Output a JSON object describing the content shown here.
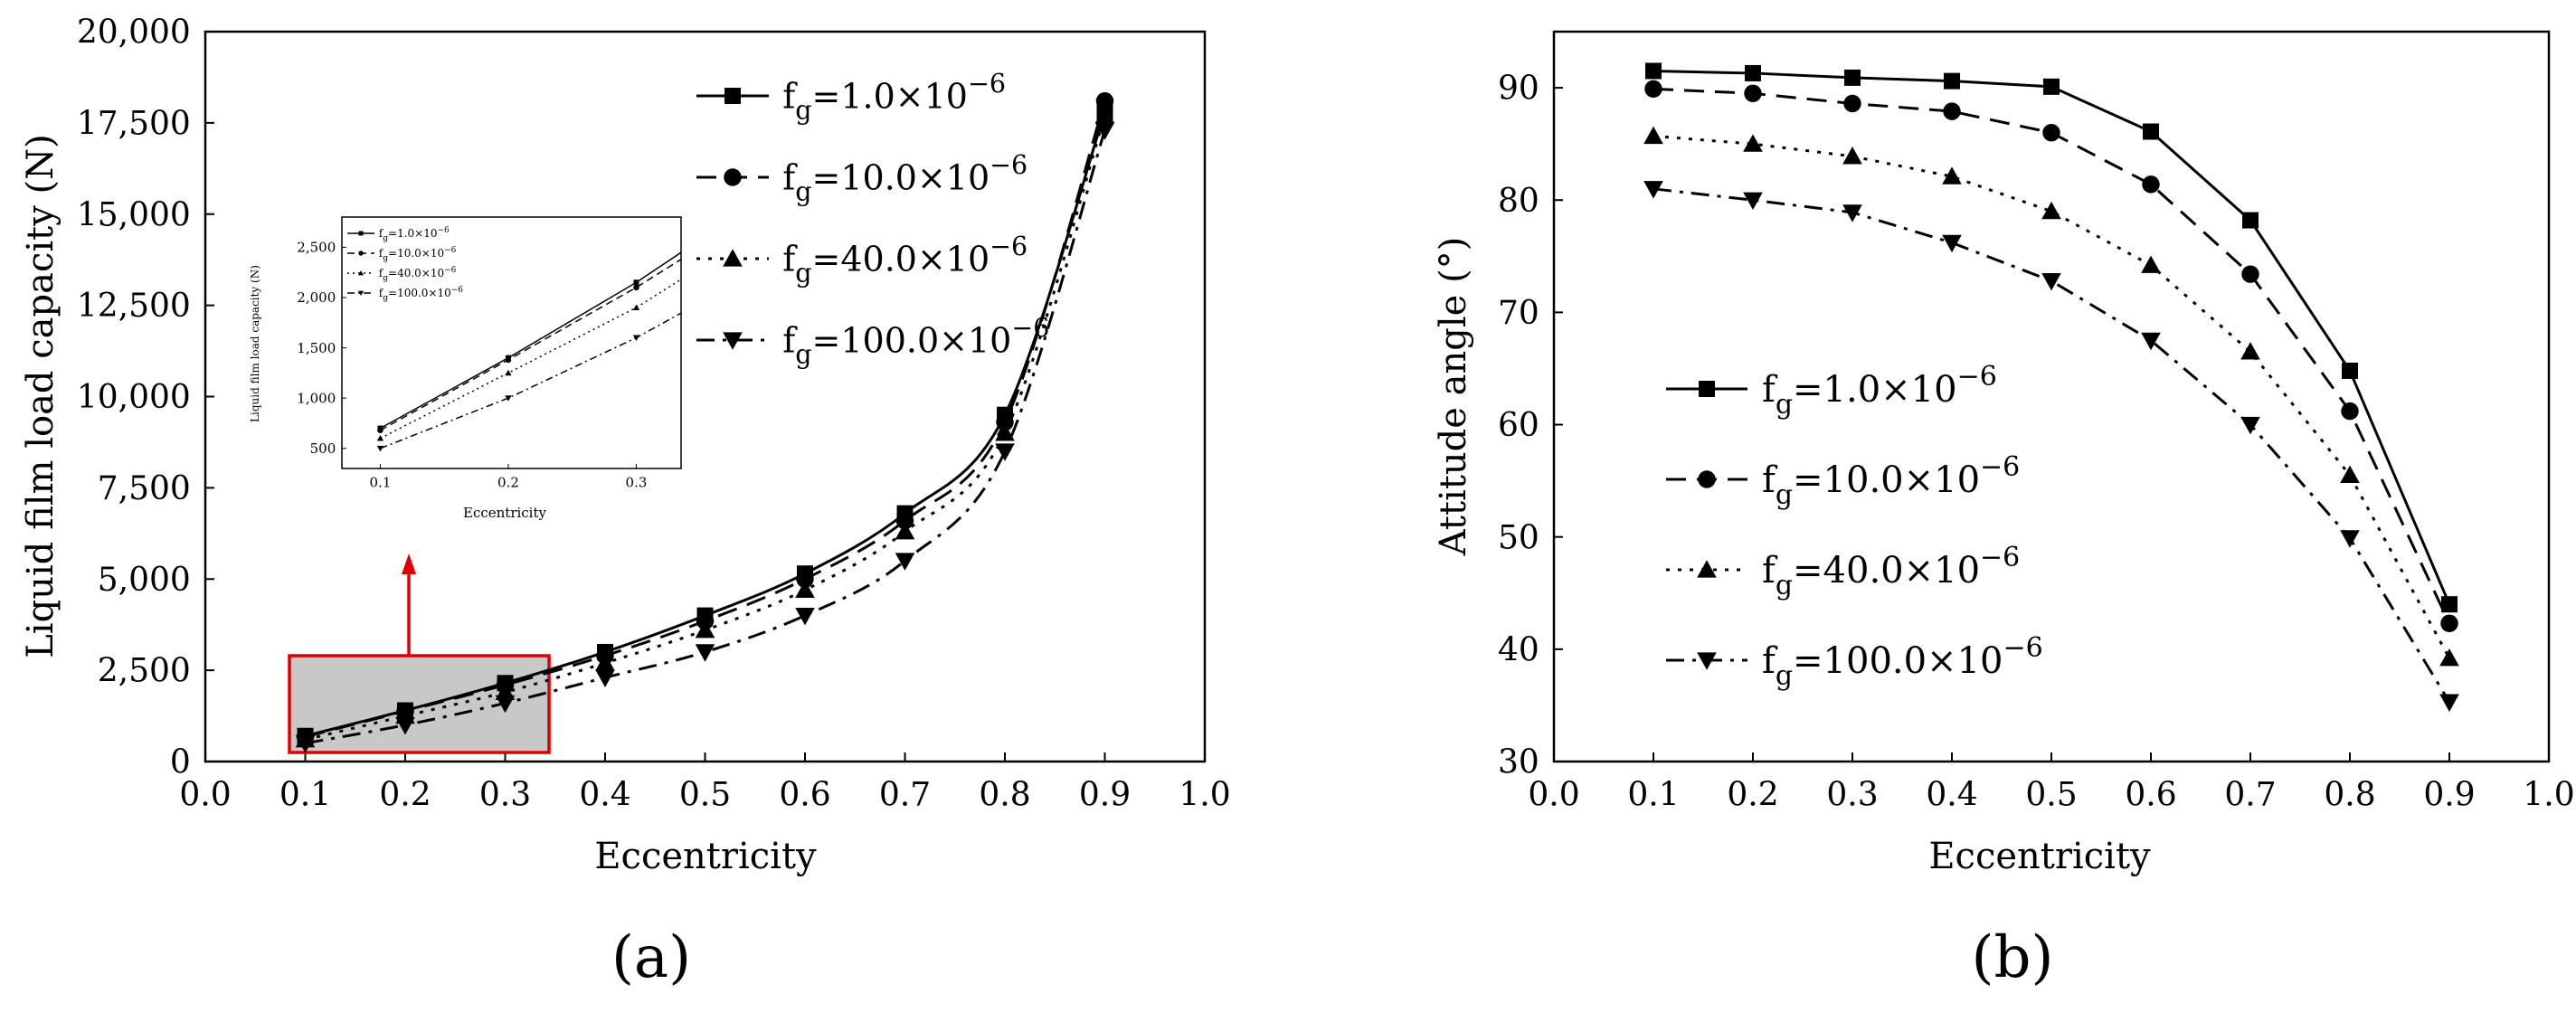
{
  "chart_data": [
    {
      "id": "a",
      "type": "line",
      "panel_label": "(a)",
      "xlabel": "Eccentricity",
      "ylabel": "Liquid film load capacity (N)",
      "xlim": [
        0.0,
        1.0
      ],
      "ylim": [
        0,
        20000
      ],
      "xticks": [
        "0.0",
        "0.1",
        "0.2",
        "0.3",
        "0.4",
        "0.5",
        "0.6",
        "0.7",
        "0.8",
        "0.9",
        "1.0"
      ],
      "yticks": [
        "0",
        "2,500",
        "5,000",
        "7,500",
        "10,000",
        "12,500",
        "15,000",
        "17,500",
        "20,000"
      ],
      "x": [
        0.1,
        0.2,
        0.3,
        0.4,
        0.5,
        0.6,
        0.7,
        0.8,
        0.9
      ],
      "series": [
        {
          "name": "fg=1.0×10−6",
          "label_prefix": "f",
          "label_sub": "g",
          "label_value": "=1.0×10",
          "label_exp": "−6",
          "marker": "square",
          "dash": "solid",
          "values": [
            700,
            1400,
            2150,
            3000,
            4000,
            5150,
            6800,
            9500,
            17800
          ]
        },
        {
          "name": "fg=10.0×10−6",
          "label_prefix": "f",
          "label_sub": "g",
          "label_value": "=10.0×10",
          "label_exp": "−6",
          "marker": "circle",
          "dash": "dash",
          "values": [
            680,
            1380,
            2100,
            2900,
            3850,
            5000,
            6600,
            9300,
            18100
          ]
        },
        {
          "name": "fg=40.0×10−6",
          "label_prefix": "f",
          "label_sub": "g",
          "label_value": "=40.0×10",
          "label_exp": "−6",
          "marker": "triangle-up",
          "dash": "dot",
          "values": [
            600,
            1250,
            1900,
            2700,
            3600,
            4700,
            6300,
            9000,
            17700
          ]
        },
        {
          "name": "fg=100.0×10−6",
          "label_prefix": "f",
          "label_sub": "g",
          "label_value": "=100.0×10",
          "label_exp": "−6",
          "marker": "triangle-down",
          "dash": "dashdot",
          "values": [
            500,
            1000,
            1600,
            2300,
            3000,
            4000,
            5500,
            8500,
            17300
          ]
        }
      ],
      "inset": {
        "xlabel": "Eccentricity",
        "ylabel": "Liquid film load capacity (N)",
        "xlim": [
          0.07,
          0.335
        ],
        "ylim": [
          300,
          2800
        ],
        "xticks": [
          "0.1",
          "0.2",
          "0.3"
        ],
        "yticks": [
          "500",
          "1,000",
          "1,500",
          "2,000",
          "2,500"
        ],
        "legend": [
          {
            "prefix": "f",
            "sub": "g",
            "value": "=1.0×10",
            "exp": "−6"
          },
          {
            "prefix": "f",
            "sub": "g",
            "value": "=10.0×10",
            "exp": "−6"
          },
          {
            "prefix": "f",
            "sub": "g",
            "value": "=40.0×10",
            "exp": "−6"
          },
          {
            "prefix": "f",
            "sub": "g",
            "value": "=100.0×10",
            "exp": "−6"
          }
        ]
      }
    },
    {
      "id": "b",
      "type": "line",
      "panel_label": "(b)",
      "xlabel": "Eccentricity",
      "ylabel": "Attitude angle (°)",
      "xlim": [
        0.0,
        1.0
      ],
      "ylim": [
        30,
        95
      ],
      "xticks": [
        "0.0",
        "0.1",
        "0.2",
        "0.3",
        "0.4",
        "0.5",
        "0.6",
        "0.7",
        "0.8",
        "0.9",
        "1.0"
      ],
      "yticks": [
        "30",
        "40",
        "50",
        "60",
        "70",
        "80",
        "90"
      ],
      "x": [
        0.1,
        0.2,
        0.3,
        0.4,
        0.5,
        0.6,
        0.7,
        0.8,
        0.9
      ],
      "series": [
        {
          "name": "fg=1.0×10−6",
          "label_prefix": "f",
          "label_sub": "g",
          "label_value": "=1.0×10",
          "label_exp": "−6",
          "marker": "square",
          "dash": "solid",
          "values": [
            91.5,
            91.3,
            90.9,
            90.6,
            90.1,
            86.1,
            78.2,
            64.8,
            44.0
          ]
        },
        {
          "name": "fg=10.0×10−6",
          "label_prefix": "f",
          "label_sub": "g",
          "label_value": "=10.0×10",
          "label_exp": "−6",
          "marker": "circle",
          "dash": "dash",
          "values": [
            89.9,
            89.5,
            88.6,
            87.9,
            86.0,
            81.4,
            73.4,
            61.2,
            42.3
          ]
        },
        {
          "name": "fg=40.0×10−6",
          "label_prefix": "f",
          "label_sub": "g",
          "label_value": "=40.0×10",
          "label_exp": "−6",
          "marker": "triangle-up",
          "dash": "dot",
          "values": [
            85.7,
            85.0,
            83.9,
            82.1,
            79.0,
            74.2,
            66.5,
            55.5,
            39.2
          ]
        },
        {
          "name": "fg=100.0×10−6",
          "label_prefix": "f",
          "label_sub": "g",
          "label_value": "=100.0×10",
          "label_exp": "−6",
          "marker": "triangle-down",
          "dash": "dashdot",
          "values": [
            81.0,
            80.0,
            78.9,
            76.2,
            72.8,
            67.5,
            60.0,
            49.9,
            35.3
          ]
        }
      ]
    }
  ]
}
